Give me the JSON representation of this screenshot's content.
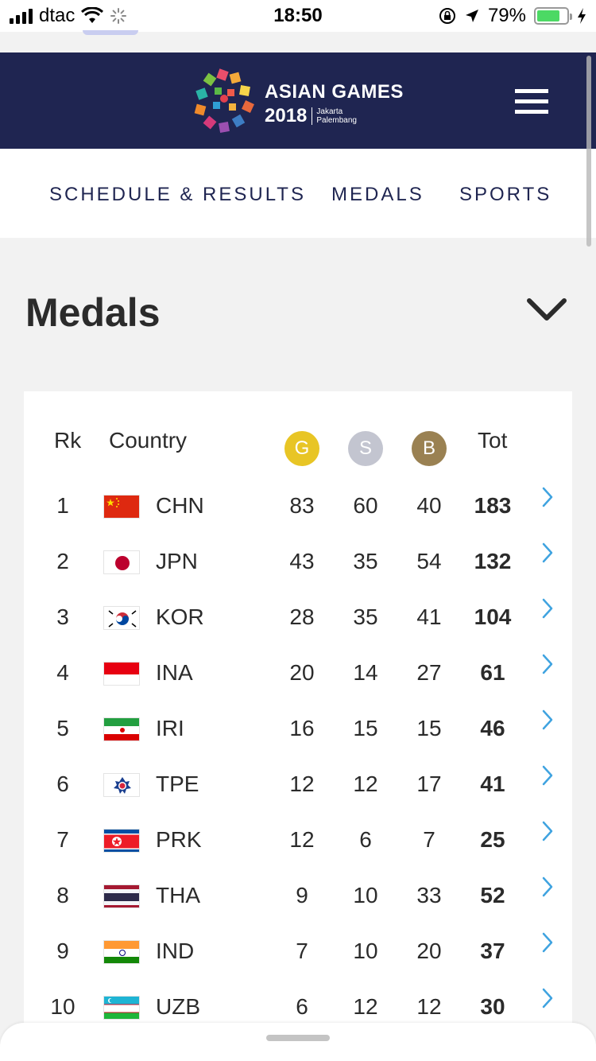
{
  "status_bar": {
    "carrier": "dtac",
    "time": "18:50",
    "battery": "79%"
  },
  "header": {
    "logo_title": "ASIAN GAMES",
    "logo_year": "2018",
    "logo_city_1": "Jakarta",
    "logo_city_2": "Palembang"
  },
  "nav": {
    "items": [
      "SCHEDULE & RESULTS",
      "MEDALS",
      "SPORTS"
    ]
  },
  "page": {
    "title": "Medals"
  },
  "table": {
    "headers": {
      "rank": "Rk",
      "country": "Country",
      "gold": "G",
      "silver": "S",
      "bronze": "B",
      "total": "Tot"
    },
    "colors": {
      "gold": "#e8c525",
      "silver": "#c3c5d0",
      "bronze": "#9a8152",
      "arrow": "#3fa3e0"
    },
    "rows": [
      {
        "rank": "1",
        "code": "CHN",
        "flag": "china-flag",
        "gold": "83",
        "silver": "60",
        "bronze": "40",
        "total": "183"
      },
      {
        "rank": "2",
        "code": "JPN",
        "flag": "japan-flag",
        "gold": "43",
        "silver": "35",
        "bronze": "54",
        "total": "132"
      },
      {
        "rank": "3",
        "code": "KOR",
        "flag": "korea-flag",
        "gold": "28",
        "silver": "35",
        "bronze": "41",
        "total": "104"
      },
      {
        "rank": "4",
        "code": "INA",
        "flag": "indonesia-flag",
        "gold": "20",
        "silver": "14",
        "bronze": "27",
        "total": "61"
      },
      {
        "rank": "5",
        "code": "IRI",
        "flag": "iran-flag",
        "gold": "16",
        "silver": "15",
        "bronze": "15",
        "total": "46"
      },
      {
        "rank": "6",
        "code": "TPE",
        "flag": "chinese-taipei-flag",
        "gold": "12",
        "silver": "12",
        "bronze": "17",
        "total": "41"
      },
      {
        "rank": "7",
        "code": "PRK",
        "flag": "north-korea-flag",
        "gold": "12",
        "silver": "6",
        "bronze": "7",
        "total": "25"
      },
      {
        "rank": "8",
        "code": "THA",
        "flag": "thailand-flag",
        "gold": "9",
        "silver": "10",
        "bronze": "33",
        "total": "52"
      },
      {
        "rank": "9",
        "code": "IND",
        "flag": "india-flag",
        "gold": "7",
        "silver": "10",
        "bronze": "20",
        "total": "37"
      },
      {
        "rank": "10",
        "code": "UZB",
        "flag": "uzbekistan-flag",
        "gold": "6",
        "silver": "12",
        "bronze": "12",
        "total": "30"
      }
    ]
  }
}
